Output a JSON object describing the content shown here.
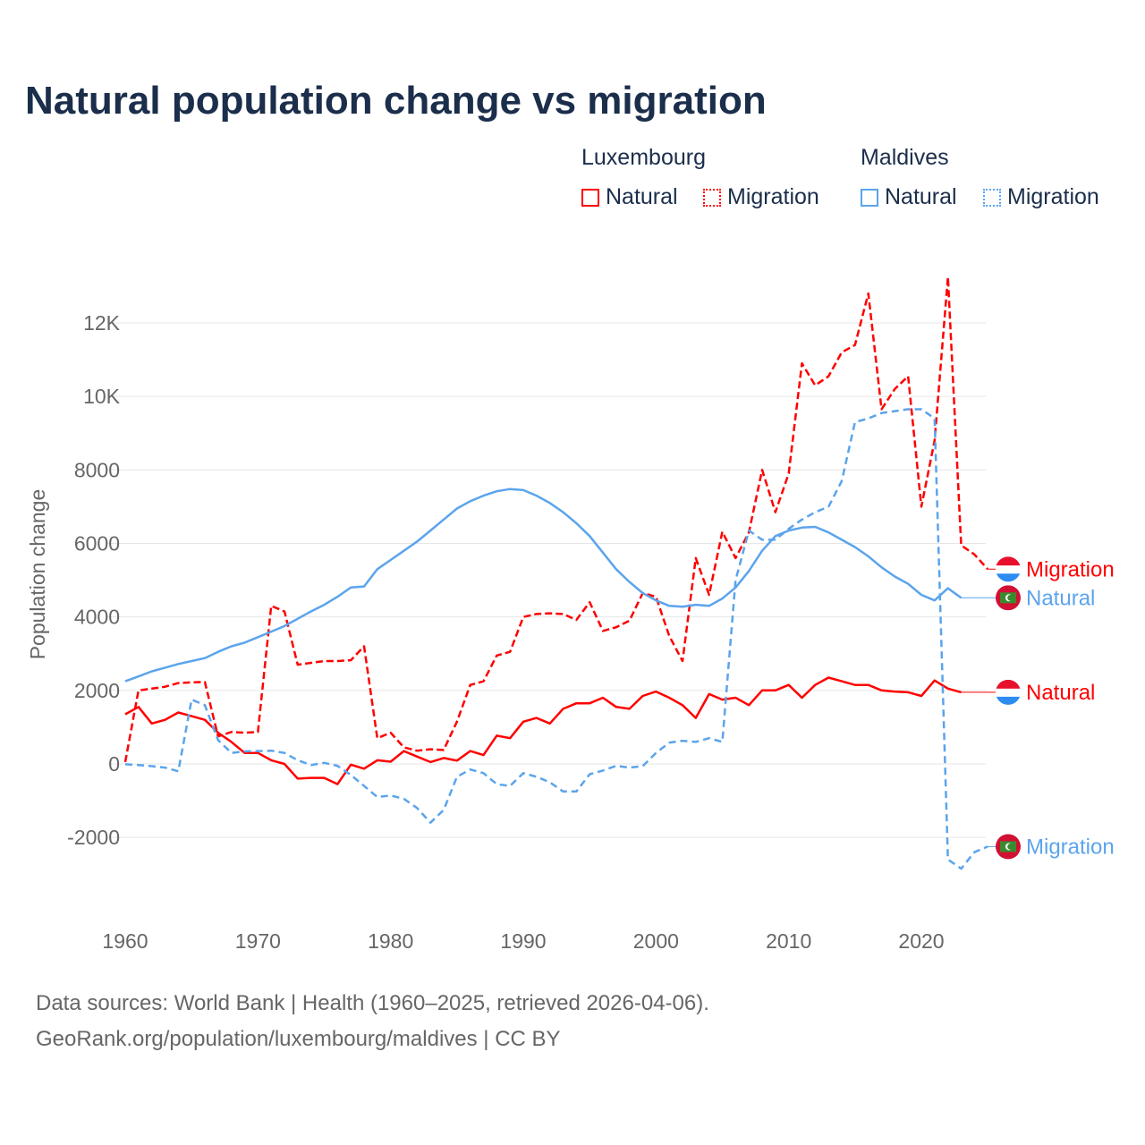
{
  "title": "Natural population change vs migration",
  "legend": {
    "groups": [
      {
        "name": "Luxembourg",
        "items": [
          "Natural",
          "Migration"
        ],
        "color": "#ff0000"
      },
      {
        "name": "Maldives",
        "items": [
          "Natural",
          "Migration"
        ],
        "color": "#5ba4ec"
      }
    ]
  },
  "footer": {
    "line1": "Data sources: World Bank | Health (1960–2025, retrieved 2026-04-06).",
    "line2": "GeoRank.org/population/luxembourg/maldives | CC BY"
  },
  "chart_data": {
    "type": "line",
    "title": "Natural population change vs migration",
    "xlabel": "",
    "ylabel": "Population change",
    "xlim": [
      1960,
      2025
    ],
    "ylim": [
      -3000,
      13500
    ],
    "xticks": [
      "1960",
      "1970",
      "1980",
      "1990",
      "2000",
      "2010",
      "2020"
    ],
    "yticks": [
      {
        "value": -2000,
        "label": "-2000"
      },
      {
        "value": 0,
        "label": "0"
      },
      {
        "value": 2000,
        "label": "2000"
      },
      {
        "value": 4000,
        "label": "4000"
      },
      {
        "value": 6000,
        "label": "6000"
      },
      {
        "value": 8000,
        "label": "8000"
      },
      {
        "value": 10000,
        "label": "10K"
      },
      {
        "value": 12000,
        "label": "12K"
      }
    ],
    "grid": true,
    "legend_position": "top-right",
    "x_start": 1960,
    "series": [
      {
        "name": "Luxembourg Natural",
        "label": "Natural",
        "country": "Luxembourg",
        "color": "#ff0000",
        "dash": false,
        "values": [
          1350,
          1550,
          1100,
          1200,
          1400,
          1300,
          1200,
          850,
          600,
          300,
          300,
          100,
          0,
          -400,
          -380,
          -380,
          -550,
          -20,
          -130,
          100,
          60,
          350,
          200,
          50,
          160,
          90,
          350,
          240,
          770,
          700,
          1150,
          1250,
          1100,
          1500,
          1650,
          1650,
          1800,
          1550,
          1500,
          1850,
          1970,
          1800,
          1600,
          1250,
          1900,
          1750,
          1800,
          1600,
          2000,
          2000,
          2150,
          1800,
          2150,
          2350,
          2250,
          2150,
          2150,
          2000,
          1970,
          1950,
          1850,
          2270,
          2050,
          1950
        ]
      },
      {
        "name": "Luxembourg Migration",
        "label": "Migration",
        "country": "Luxembourg",
        "color": "#ff0000",
        "dash": true,
        "values": [
          50,
          2000,
          2050,
          2100,
          2200,
          2220,
          2230,
          750,
          870,
          850,
          870,
          4300,
          4150,
          2700,
          2750,
          2800,
          2800,
          2820,
          3200,
          700,
          850,
          450,
          360,
          400,
          380,
          1150,
          2150,
          2250,
          2950,
          3050,
          4000,
          4080,
          4100,
          4080,
          3920,
          4400,
          3620,
          3720,
          3900,
          4650,
          4550,
          3480,
          2800,
          5600,
          4600,
          6320,
          5600,
          6300,
          8000,
          6850,
          7900,
          10900,
          10300,
          10550,
          11200,
          11400,
          12800,
          9650,
          10200,
          10550,
          7000,
          8800,
          13250,
          5950,
          5700,
          5300
        ]
      },
      {
        "name": "Maldives Natural",
        "label": "Natural",
        "country": "Maldives",
        "color": "#5ba4ec",
        "dash": false,
        "values": [
          2250,
          2380,
          2520,
          2620,
          2720,
          2800,
          2880,
          3050,
          3200,
          3300,
          3450,
          3600,
          3750,
          3950,
          4150,
          4330,
          4550,
          4800,
          4830,
          5300,
          5550,
          5800,
          6050,
          6350,
          6650,
          6950,
          7150,
          7300,
          7420,
          7480,
          7450,
          7300,
          7100,
          6850,
          6550,
          6200,
          5750,
          5300,
          4950,
          4650,
          4450,
          4300,
          4280,
          4330,
          4300,
          4500,
          4800,
          5250,
          5800,
          6200,
          6350,
          6430,
          6450,
          6300,
          6100,
          5900,
          5650,
          5350,
          5100,
          4900,
          4600,
          4450,
          4780,
          4520
        ]
      },
      {
        "name": "Maldives Migration",
        "label": "Migration",
        "country": "Maldives",
        "color": "#5ba4ec",
        "dash": true,
        "values": [
          -10,
          -30,
          -60,
          -100,
          -200,
          1750,
          1600,
          650,
          300,
          340,
          350,
          360,
          300,
          100,
          -30,
          30,
          -50,
          -300,
          -600,
          -900,
          -860,
          -950,
          -1200,
          -1600,
          -1250,
          -350,
          -150,
          -250,
          -550,
          -600,
          -250,
          -350,
          -500,
          -750,
          -750,
          -280,
          -180,
          -50,
          -100,
          -60,
          300,
          580,
          630,
          600,
          700,
          600,
          5000,
          6350,
          6100,
          6100,
          6400,
          6650,
          6850,
          7000,
          7700,
          9300,
          9400,
          9550,
          9600,
          9650,
          9650,
          9400,
          -2600,
          -2850,
          -2400,
          -2250
        ]
      }
    ]
  }
}
